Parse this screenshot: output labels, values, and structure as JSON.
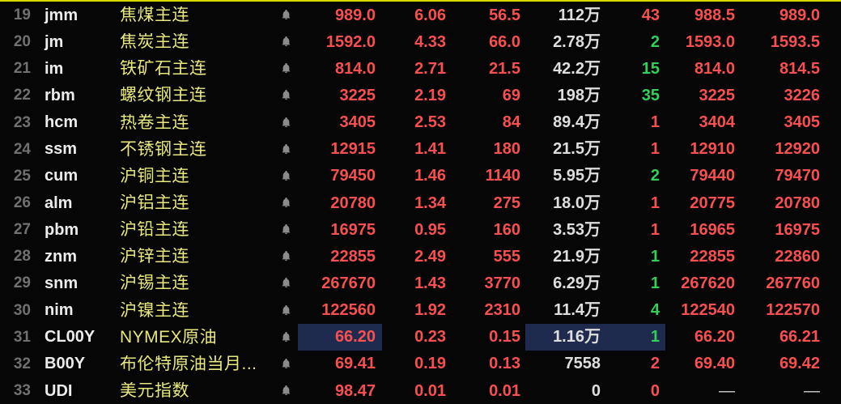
{
  "colors": {
    "background": "#060606",
    "top_divider": "#d9d900",
    "up_red": "#f85050",
    "down_green": "#33cf58",
    "name_yellow": "#e7e77e",
    "volume_white": "#dedede",
    "row_number_gray": "#707070",
    "code_white": "#ececec",
    "bell_gray": "#8b8b8b",
    "highlight_bg": "#1e2b4e",
    "empty_dash_gray": "#cfcfcf"
  },
  "icons": {
    "bell": "alert-bell-icon"
  },
  "table": {
    "column_names": [
      "row_number",
      "code",
      "name",
      "alert",
      "last_price",
      "change_percent",
      "change_amount",
      "volume",
      "order_count",
      "bid_price",
      "ask_price"
    ],
    "rows": [
      {
        "num": "19",
        "code": "jmm",
        "name": "焦煤主连",
        "price": "989.0",
        "change_pct": "6.06",
        "change_amt": "56.5",
        "volume": "112万",
        "count": "43",
        "count_dir": "up",
        "bid": "988.5",
        "ask": "989.0",
        "highlight": false
      },
      {
        "num": "20",
        "code": "jm",
        "name": "焦炭主连",
        "price": "1592.0",
        "change_pct": "4.33",
        "change_amt": "66.0",
        "volume": "2.78万",
        "count": "2",
        "count_dir": "down",
        "bid": "1593.0",
        "ask": "1593.5",
        "highlight": false
      },
      {
        "num": "21",
        "code": "im",
        "name": "铁矿石主连",
        "price": "814.0",
        "change_pct": "2.71",
        "change_amt": "21.5",
        "volume": "42.2万",
        "count": "15",
        "count_dir": "down",
        "bid": "814.0",
        "ask": "814.5",
        "highlight": false
      },
      {
        "num": "22",
        "code": "rbm",
        "name": "螺纹钢主连",
        "price": "3225",
        "change_pct": "2.19",
        "change_amt": "69",
        "volume": "198万",
        "count": "35",
        "count_dir": "down",
        "bid": "3225",
        "ask": "3226",
        "highlight": false
      },
      {
        "num": "23",
        "code": "hcm",
        "name": "热卷主连",
        "price": "3405",
        "change_pct": "2.53",
        "change_amt": "84",
        "volume": "89.4万",
        "count": "1",
        "count_dir": "up",
        "bid": "3404",
        "ask": "3405",
        "highlight": false
      },
      {
        "num": "24",
        "code": "ssm",
        "name": "不锈钢主连",
        "price": "12915",
        "change_pct": "1.41",
        "change_amt": "180",
        "volume": "21.5万",
        "count": "1",
        "count_dir": "up",
        "bid": "12910",
        "ask": "12920",
        "highlight": false
      },
      {
        "num": "25",
        "code": "cum",
        "name": "沪铜主连",
        "price": "79450",
        "change_pct": "1.46",
        "change_amt": "1140",
        "volume": "5.95万",
        "count": "2",
        "count_dir": "down",
        "bid": "79440",
        "ask": "79470",
        "highlight": false
      },
      {
        "num": "26",
        "code": "alm",
        "name": "沪铝主连",
        "price": "20780",
        "change_pct": "1.34",
        "change_amt": "275",
        "volume": "18.0万",
        "count": "1",
        "count_dir": "up",
        "bid": "20775",
        "ask": "20780",
        "highlight": false
      },
      {
        "num": "27",
        "code": "pbm",
        "name": "沪铅主连",
        "price": "16975",
        "change_pct": "0.95",
        "change_amt": "160",
        "volume": "3.53万",
        "count": "1",
        "count_dir": "up",
        "bid": "16965",
        "ask": "16975",
        "highlight": false
      },
      {
        "num": "28",
        "code": "znm",
        "name": "沪锌主连",
        "price": "22855",
        "change_pct": "2.49",
        "change_amt": "555",
        "volume": "21.9万",
        "count": "1",
        "count_dir": "down",
        "bid": "22855",
        "ask": "22860",
        "highlight": false
      },
      {
        "num": "29",
        "code": "snm",
        "name": "沪锡主连",
        "price": "267670",
        "change_pct": "1.43",
        "change_amt": "3770",
        "volume": "6.29万",
        "count": "1",
        "count_dir": "down",
        "bid": "267620",
        "ask": "267760",
        "highlight": false
      },
      {
        "num": "30",
        "code": "nim",
        "name": "沪镍主连",
        "price": "122560",
        "change_pct": "1.92",
        "change_amt": "2310",
        "volume": "11.4万",
        "count": "4",
        "count_dir": "down",
        "bid": "122540",
        "ask": "122570",
        "highlight": false
      },
      {
        "num": "31",
        "code": "CL00Y",
        "name": "NYMEX原油",
        "price": "66.20",
        "change_pct": "0.23",
        "change_amt": "0.15",
        "volume": "1.16万",
        "count": "1",
        "count_dir": "down",
        "bid": "66.20",
        "ask": "66.21",
        "highlight": true
      },
      {
        "num": "32",
        "code": "B00Y",
        "name": "布伦特原油当月...",
        "price": "69.41",
        "change_pct": "0.19",
        "change_amt": "0.13",
        "volume": "7558",
        "count": "2",
        "count_dir": "up",
        "bid": "69.40",
        "ask": "69.42",
        "highlight": false
      },
      {
        "num": "33",
        "code": "UDI",
        "name": "美元指数",
        "price": "98.47",
        "change_pct": "0.01",
        "change_amt": "0.01",
        "volume": "0",
        "count": "0",
        "count_dir": "up",
        "bid": "—",
        "ask": "—",
        "highlight": false
      }
    ]
  }
}
